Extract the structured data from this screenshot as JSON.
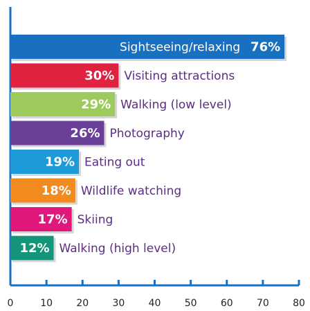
{
  "chart_data": {
    "type": "bar",
    "orientation": "horizontal",
    "categories": [
      "Sightseeing/relaxing",
      "Visiting attractions",
      "Walking (low level)",
      "Photography",
      "Eating out",
      "Wildlife watching",
      "Skiing",
      "Walking (high level)"
    ],
    "values": [
      76,
      30,
      29,
      26,
      19,
      18,
      17,
      12
    ],
    "value_labels": [
      "76%",
      "30%",
      "29%",
      "26%",
      "19%",
      "18%",
      "17%",
      "12%"
    ],
    "colors": [
      "#1a70c0",
      "#e0213f",
      "#9dcb5b",
      "#6a3f98",
      "#1c9ad7",
      "#f28b1f",
      "#e1187b",
      "#14957a"
    ],
    "xlim": [
      0,
      80
    ],
    "xticks": [
      0,
      10,
      20,
      30,
      40,
      50,
      60,
      70,
      80
    ]
  }
}
